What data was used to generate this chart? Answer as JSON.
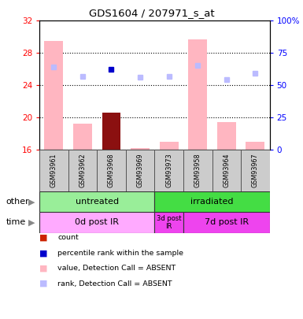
{
  "title": "GDS1604 / 207971_s_at",
  "samples": [
    "GSM93961",
    "GSM93962",
    "GSM93968",
    "GSM93969",
    "GSM93973",
    "GSM93958",
    "GSM93964",
    "GSM93967"
  ],
  "ylim_left": [
    16,
    32
  ],
  "ylim_right": [
    0,
    100
  ],
  "yticks_left": [
    16,
    20,
    24,
    28,
    32
  ],
  "yticks_right": [
    0,
    25,
    50,
    75,
    100
  ],
  "pink_bars": [
    29.5,
    19.3,
    20.6,
    16.2,
    17.0,
    29.7,
    19.4,
    17.0
  ],
  "dark_red_bar_index": 2,
  "blue_squares_value": [
    26.3,
    25.1,
    26.0,
    25.0,
    25.1,
    26.5,
    24.7,
    25.5
  ],
  "blue_square_dark_index": 2,
  "group_other": [
    {
      "label": "untreated",
      "start": 0,
      "end": 4,
      "color": "#99EE99"
    },
    {
      "label": "irradiated",
      "start": 4,
      "end": 8,
      "color": "#44DD44"
    }
  ],
  "group_time": [
    {
      "label": "0d post IR",
      "start": 0,
      "end": 4,
      "color": "#FFAAFF"
    },
    {
      "label": "3d post\nIR",
      "start": 4,
      "end": 5,
      "color": "#EE44EE"
    },
    {
      "label": "7d post IR",
      "start": 5,
      "end": 8,
      "color": "#EE44EE"
    }
  ],
  "legend_items": [
    {
      "color": "#CC2200",
      "label": "count"
    },
    {
      "color": "#0000CC",
      "label": "percentile rank within the sample"
    },
    {
      "color": "#FFB6C1",
      "label": "value, Detection Call = ABSENT"
    },
    {
      "color": "#BBBBFF",
      "label": "rank, Detection Call = ABSENT"
    }
  ],
  "bar_base": 16,
  "pink_color": "#FFB6C1",
  "dark_red_color": "#8B1010",
  "light_blue_color": "#BBBBFF",
  "dark_blue_color": "#0000CC"
}
